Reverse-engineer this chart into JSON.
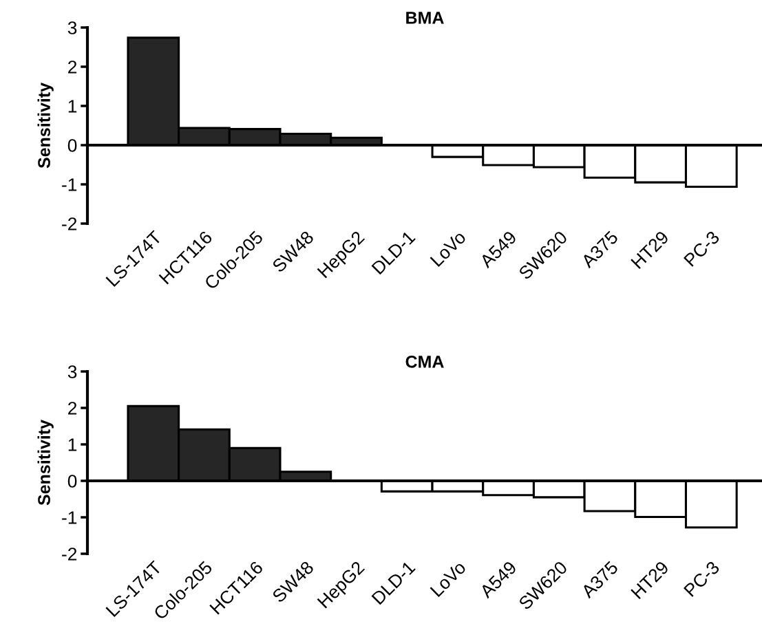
{
  "chart_data": [
    {
      "type": "bar",
      "title": "BMA",
      "ylabel": "Sensitivity",
      "categories": [
        "LS-174T",
        "HCT116",
        "Colo-205",
        "SW48",
        "HepG2",
        "DLD-1",
        "LoVo",
        "A549",
        "SW620",
        "A375",
        "HT29",
        "PC-3"
      ],
      "values": [
        2.74,
        0.44,
        0.41,
        0.29,
        0.19,
        0,
        -0.3,
        -0.51,
        -0.56,
        -0.83,
        -0.95,
        -1.06
      ],
      "colors": [
        "#262626",
        "#262626",
        "#262626",
        "#262626",
        "#262626",
        "#262626",
        "#ffffff",
        "#ffffff",
        "#ffffff",
        "#ffffff",
        "#ffffff",
        "#ffffff"
      ],
      "ylim": [
        -2,
        3
      ],
      "yticks": [
        -2,
        -1,
        0,
        1,
        2,
        3
      ],
      "legend": false
    },
    {
      "type": "bar",
      "title": "CMA",
      "ylabel": "Sensitivity",
      "categories": [
        "LS-174T",
        "Colo-205",
        "HCT116",
        "SW48",
        "HepG2",
        "DLD-1",
        "LoVo",
        "A549",
        "SW620",
        "A375",
        "HT29",
        "PC-3"
      ],
      "values": [
        2.05,
        1.41,
        0.9,
        0.25,
        0,
        -0.29,
        -0.29,
        -0.39,
        -0.45,
        -0.83,
        -0.99,
        -1.28
      ],
      "colors": [
        "#262626",
        "#262626",
        "#262626",
        "#262626",
        "#262626",
        "#ffffff",
        "#ffffff",
        "#ffffff",
        "#ffffff",
        "#ffffff",
        "#ffffff",
        "#ffffff"
      ],
      "ylim": [
        -2,
        3
      ],
      "yticks": [
        -2,
        -1,
        0,
        1,
        2,
        3
      ],
      "legend": false
    }
  ]
}
